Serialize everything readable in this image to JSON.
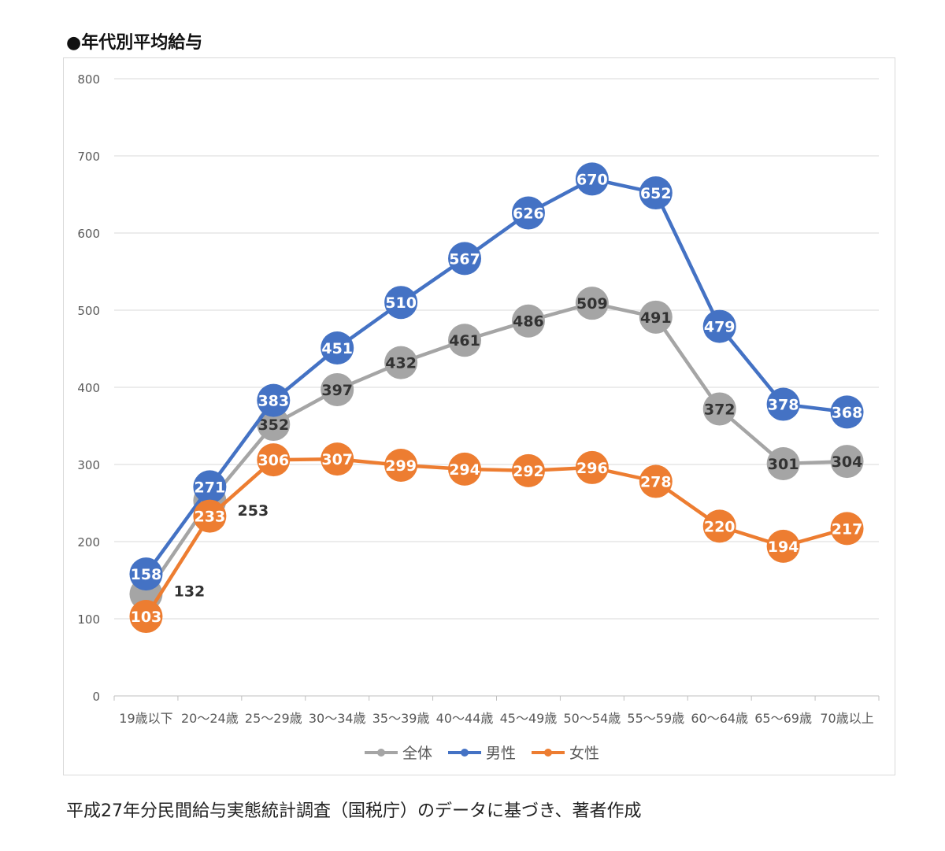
{
  "heading": "●年代別平均給与",
  "source_note": "平成27年分民間給与実態統計調査（国税庁）のデータに基づき、著者作成",
  "chart_data": {
    "type": "line",
    "title": "",
    "xlabel": "",
    "ylabel": "",
    "ylim": [
      0,
      800
    ],
    "yticks": [
      0,
      100,
      200,
      300,
      400,
      500,
      600,
      700,
      800
    ],
    "grid": true,
    "legend_position": "bottom",
    "categories": [
      "19歳以下",
      "20〜24歳",
      "25〜29歳",
      "30〜34歳",
      "35〜39歳",
      "40〜44歳",
      "45〜49歳",
      "50〜54歳",
      "55〜59歳",
      "60〜64歳",
      "65〜69歳",
      "70歳以上"
    ],
    "series": [
      {
        "name": "全体",
        "color": "#a5a5a5",
        "label_color": "#333333",
        "values": [
          132,
          253,
          352,
          397,
          432,
          461,
          486,
          509,
          491,
          372,
          301,
          304
        ]
      },
      {
        "name": "男性",
        "color": "#4472c4",
        "label_color": "#ffffff",
        "values": [
          158,
          271,
          383,
          451,
          510,
          567,
          626,
          670,
          652,
          479,
          378,
          368
        ]
      },
      {
        "name": "女性",
        "color": "#ed7d31",
        "label_color": "#ffffff",
        "values": [
          103,
          233,
          306,
          307,
          299,
          294,
          292,
          296,
          278,
          220,
          194,
          217
        ]
      }
    ]
  }
}
